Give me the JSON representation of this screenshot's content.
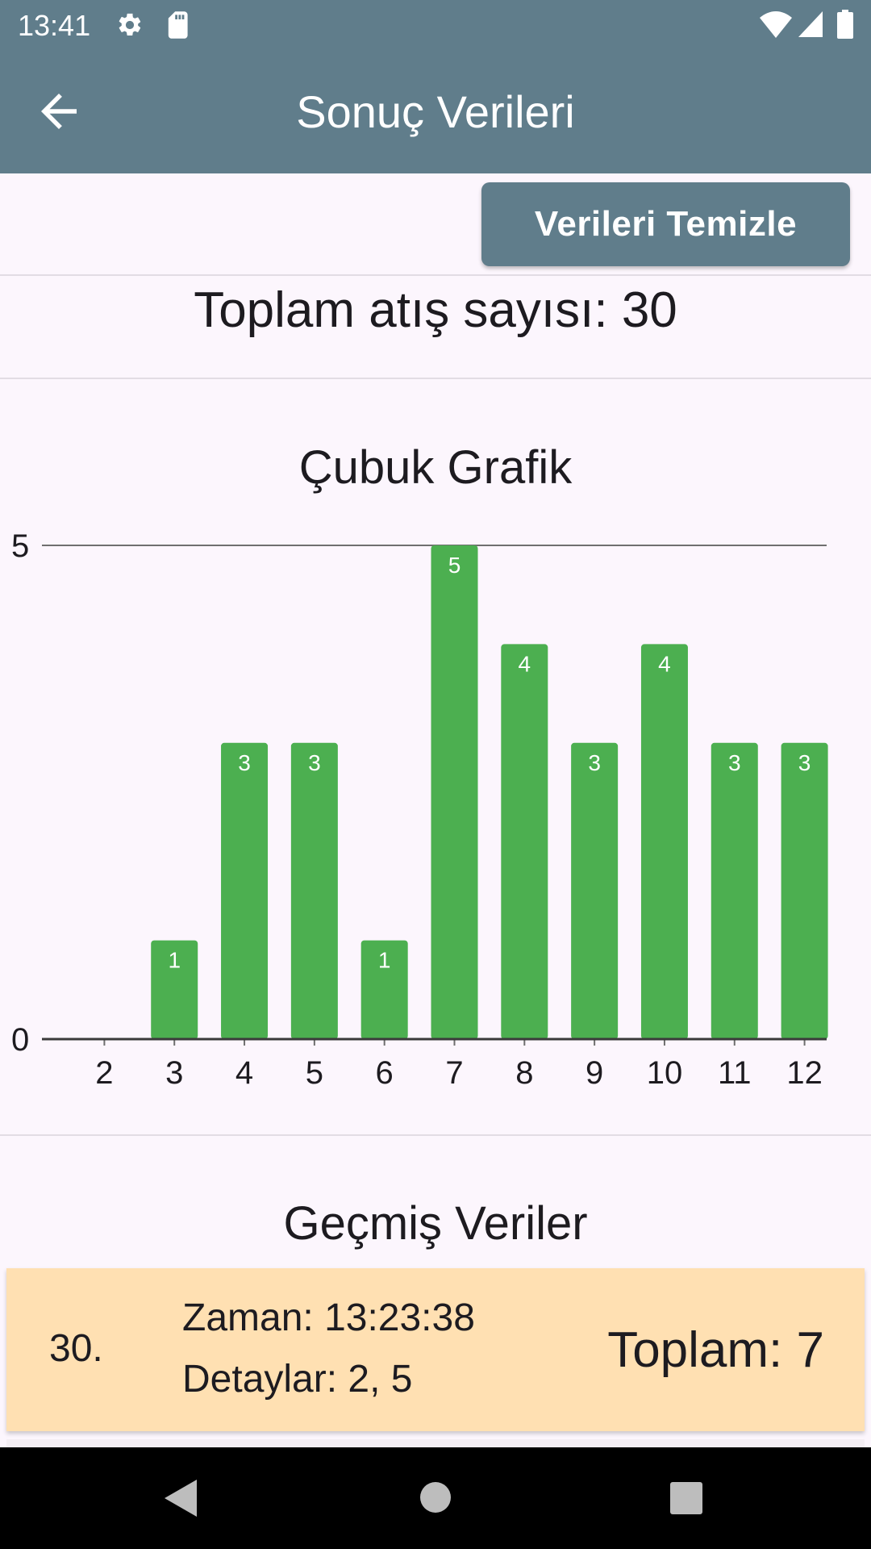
{
  "status_bar": {
    "time": "13:41",
    "icons": [
      "gear-icon",
      "sd-card-icon",
      "wifi-icon",
      "signal-icon",
      "battery-icon"
    ]
  },
  "app_bar": {
    "title": "Sonuç Verileri",
    "back_icon": "arrow-left-icon"
  },
  "toolbar": {
    "clear_label": "Verileri Temizle"
  },
  "summary": {
    "total_text": "Toplam atış sayısı: 30"
  },
  "chart_section": {
    "title": "Çubuk Grafik"
  },
  "chart_data": {
    "type": "bar",
    "title": "Çubuk Grafik",
    "categories": [
      "2",
      "3",
      "4",
      "5",
      "6",
      "7",
      "8",
      "9",
      "10",
      "11",
      "12"
    ],
    "values": [
      0,
      1,
      3,
      3,
      1,
      5,
      4,
      3,
      4,
      3,
      3
    ],
    "ylim": [
      0,
      5
    ],
    "y_ticks": [
      "0",
      "5"
    ],
    "grid": true,
    "bar_color": "#4caf50",
    "xlabel": "",
    "ylabel": ""
  },
  "history": {
    "title": "Geçmiş Veriler",
    "entries": [
      {
        "index": "30.",
        "time": "Zaman: 13:23:38",
        "details": "Detaylar: 2, 5",
        "total": "Toplam: 7"
      }
    ]
  },
  "nav_bar": {
    "icons": [
      "back-triangle-icon",
      "home-circle-icon",
      "recents-square-icon"
    ]
  },
  "colors": {
    "primary": "#607d8b",
    "background": "#fcf6fd",
    "bar": "#4caf50",
    "history_card": "#ffe0b2"
  }
}
